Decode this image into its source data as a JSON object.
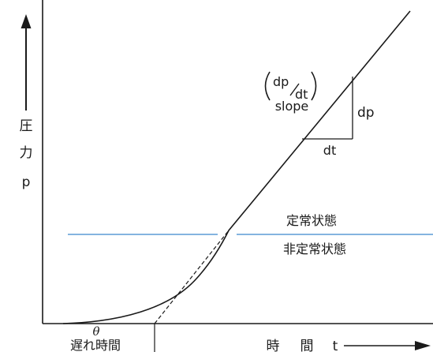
{
  "y_axis": {
    "label_chars": [
      "圧",
      "力",
      "p"
    ]
  },
  "x_axis": {
    "label_left": "時",
    "label_right": "間",
    "label_var": "t"
  },
  "delay": {
    "symbol": "θ",
    "label": "遅れ時間"
  },
  "slope": {
    "numerator": "dp",
    "denominator": "dt",
    "word": "slope"
  },
  "triangle": {
    "dp_label": "dp",
    "dt_label": "dt"
  },
  "regions": {
    "above": "定常状態",
    "below": "非定常状態"
  },
  "colors": {
    "axis": "#1a1a1a",
    "curve": "#1a1a1a",
    "boundary": "#5b9bd5"
  }
}
